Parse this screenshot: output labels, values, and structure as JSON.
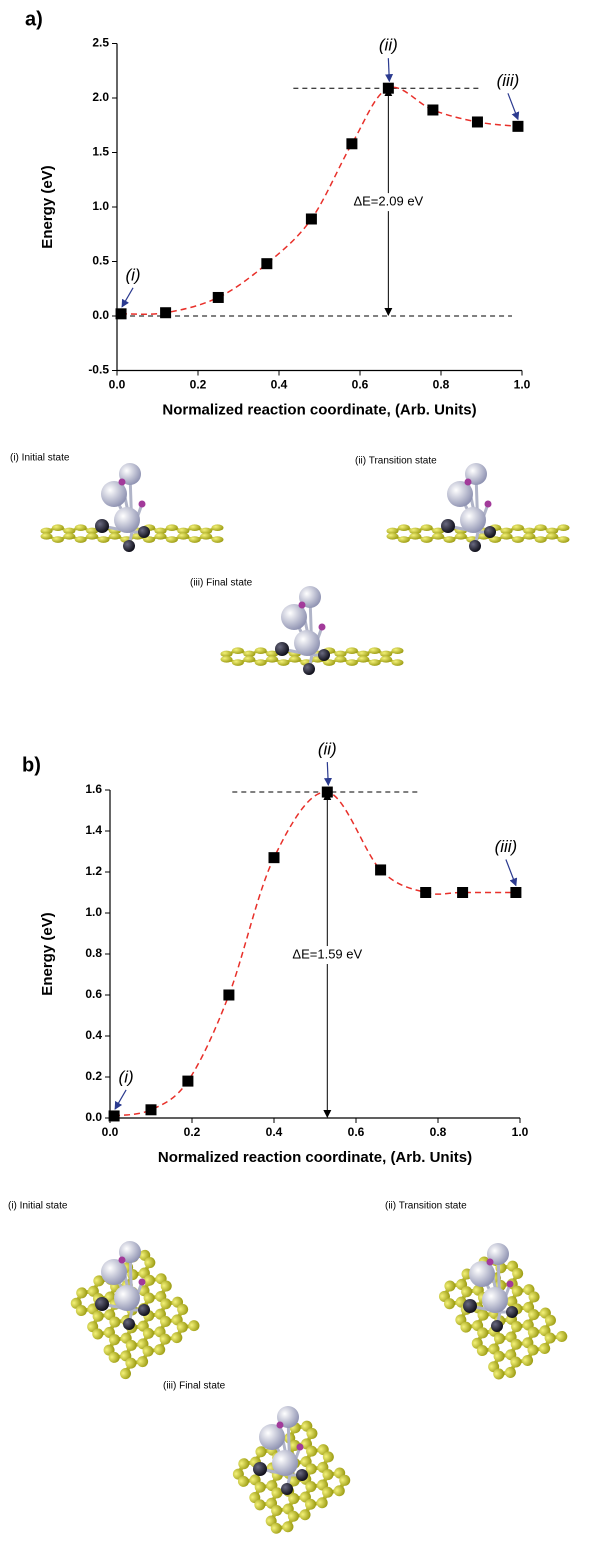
{
  "chart_data": [
    {
      "type": "scatter",
      "panel": "a)",
      "x_label": "Normalized reaction coordinate, (Arb. Units)",
      "y_label": "Energy (eV)",
      "x": [
        0.01,
        0.12,
        0.25,
        0.37,
        0.48,
        0.58,
        0.67,
        0.78,
        0.89,
        0.99
      ],
      "values": [
        0.02,
        0.03,
        0.17,
        0.48,
        0.89,
        1.58,
        2.09,
        1.89,
        1.78,
        1.74
      ],
      "marker_color": "#000000",
      "line_color": "#e8302a",
      "xlim": [
        0,
        1
      ],
      "xticks": [
        {
          "value": 0,
          "label": "0.0"
        },
        0.2,
        0.4,
        0.6,
        0.8,
        {
          "value": 1,
          "label": "1.0"
        }
      ],
      "ylim": [
        -0.5,
        2.5
      ],
      "yticks": [
        -0.5,
        {
          "value": 0,
          "label": "0.0"
        },
        0.5,
        {
          "value": 1,
          "label": "1.0"
        },
        1.5,
        {
          "value": 2,
          "label": "2.0"
        },
        2.5
      ],
      "annotations": [
        "(i)",
        "(ii)",
        "(iii)",
        "ΔE=2.09 eV"
      ],
      "structure_labels": [
        "(i) Initial state",
        "(ii) Transition state",
        "(iii) Final state"
      ]
    },
    {
      "type": "scatter",
      "panel": "b)",
      "x_label": "Normalized reaction coordinate, (Arb. Units)",
      "y_label": "Energy (eV)",
      "x": [
        0.01,
        0.1,
        0.19,
        0.29,
        0.4,
        0.53,
        0.66,
        0.77,
        0.86,
        0.99
      ],
      "values": [
        0.01,
        0.04,
        0.18,
        0.6,
        1.27,
        1.59,
        1.21,
        1.1,
        1.1,
        1.1
      ],
      "marker_color": "#000000",
      "line_color": "#e8302a",
      "xlim": [
        0,
        1
      ],
      "xticks": [
        {
          "value": 0,
          "label": "0.0"
        },
        0.2,
        0.4,
        0.6,
        0.8,
        {
          "value": 1,
          "label": "1.0"
        }
      ],
      "ylim": [
        0,
        1.6
      ],
      "yticks": [
        {
          "value": 0,
          "label": "0.0"
        },
        0.2,
        0.4,
        0.6,
        0.8,
        {
          "value": 1,
          "label": "1.0"
        },
        1.2,
        1.4,
        1.6
      ],
      "annotations": [
        "(i)",
        "(ii)",
        "(iii)",
        "ΔE=1.59 eV"
      ],
      "structure_labels": [
        "(i) Initial state",
        "(ii) Transition state",
        "(iii) Final state"
      ]
    }
  ]
}
